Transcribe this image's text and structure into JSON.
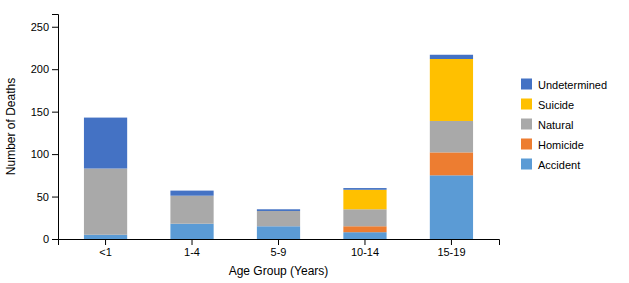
{
  "chart_data": {
    "type": "bar",
    "stacked": true,
    "xlabel": "Age Group (Years)",
    "ylabel": "Number of Deaths",
    "categories": [
      "<1",
      "1-4",
      "5-9",
      "10-14",
      "15-19"
    ],
    "series": [
      {
        "name": "Accident",
        "color": "#5B9BD5",
        "values": [
          5,
          18,
          15,
          8,
          75
        ]
      },
      {
        "name": "Homicide",
        "color": "#ED7D31",
        "values": [
          0,
          0,
          0,
          7,
          27
        ]
      },
      {
        "name": "Natural",
        "color": "#A9A9A9",
        "values": [
          78,
          33,
          18,
          20,
          37
        ]
      },
      {
        "name": "Suicide",
        "color": "#FFC000",
        "values": [
          0,
          0,
          0,
          23,
          73
        ]
      },
      {
        "name": "Undetermined",
        "color": "#4472C4",
        "values": [
          60,
          6,
          2,
          2,
          5
        ]
      }
    ],
    "ylim": [
      0,
      265
    ],
    "yticks": [
      0,
      50,
      100,
      150,
      200,
      250
    ],
    "legend": "right"
  }
}
